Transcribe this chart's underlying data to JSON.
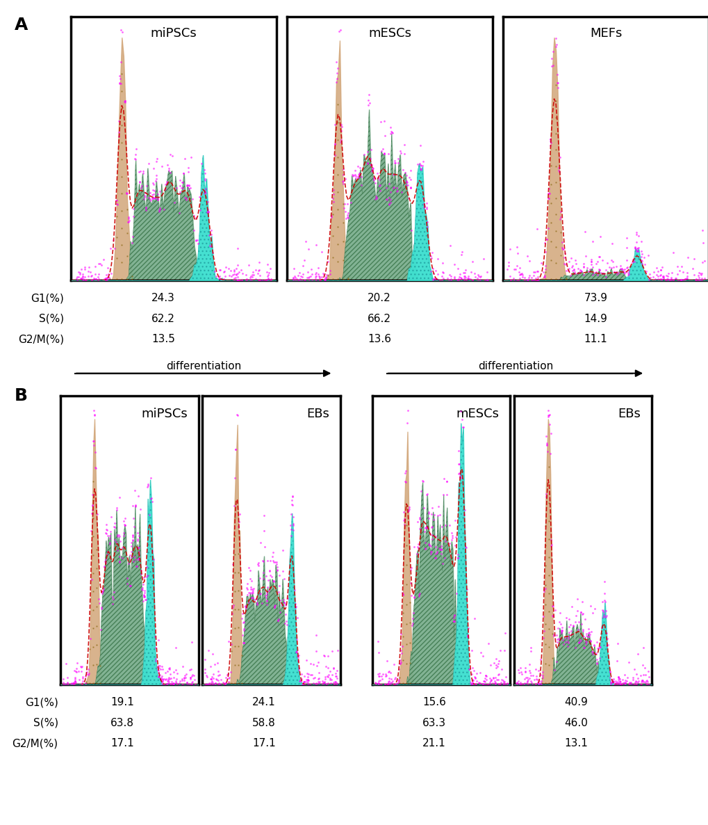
{
  "panel_A_title": "A",
  "panel_B_title": "B",
  "panel_A_labels": [
    "miPSCs",
    "mESCs",
    "MEFs"
  ],
  "panel_B_labels": [
    "miPSCs",
    "EBs",
    "mESCs",
    "EBs"
  ],
  "panel_A_stats": {
    "G1": [
      24.3,
      20.2,
      73.9
    ],
    "S": [
      62.2,
      66.2,
      14.9
    ],
    "G2M": [
      13.5,
      13.6,
      11.1
    ]
  },
  "panel_B_stats": {
    "G1": [
      19.1,
      24.1,
      15.6,
      40.9
    ],
    "S": [
      63.8,
      58.8,
      63.3,
      46.0
    ],
    "G2M": [
      17.1,
      17.1,
      21.1,
      13.1
    ]
  },
  "color_G1": "#D2A679",
  "color_S": "#7BAF8E",
  "color_G2M": "#40E0D0",
  "color_scatter": "#FF00FF",
  "color_line": "#CC0000",
  "background": "#FFFFFF"
}
